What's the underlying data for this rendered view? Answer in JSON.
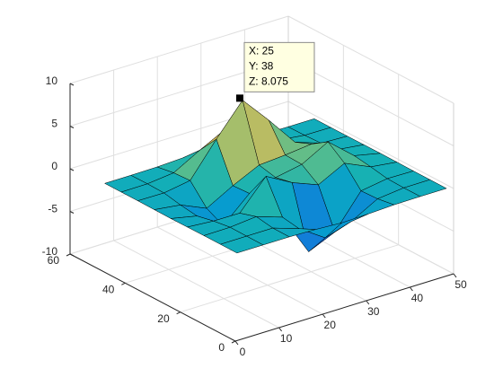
{
  "chart_data": {
    "type": "surface",
    "x": [
      1,
      7,
      13,
      19,
      25,
      31,
      37,
      43,
      49
    ],
    "y": [
      1,
      7,
      13,
      19,
      25,
      31,
      37,
      43,
      49
    ],
    "z": [
      [
        0,
        0,
        0,
        -0.08,
        -0.25,
        -0.17,
        -0.03,
        0,
        0
      ],
      [
        0,
        0.01,
        0.01,
        -1.0,
        -3.02,
        -2.05,
        -0.35,
        -0.01,
        0
      ],
      [
        0,
        0.03,
        0.33,
        -0.68,
        -5.68,
        -4.32,
        -0.44,
        0.05,
        0
      ],
      [
        -0.02,
        -0.26,
        -0.28,
        3.09,
        1.4,
        0.2,
        1.78,
        0.41,
        0.02
      ],
      [
        -0.04,
        -0.69,
        -2.77,
        0.06,
        0.98,
        1.57,
        3.27,
        0.7,
        0.03
      ],
      [
        -0.02,
        -0.42,
        -1.76,
        -0.05,
        1.42,
        1.65,
        1.99,
        0.4,
        0.02
      ],
      [
        0,
        -0.03,
        0.48,
        4.38,
        8.0,
        4.72,
        1.19,
        0.12,
        0
      ],
      [
        0,
        0.02,
        0.36,
        2.07,
        3.65,
        2.09,
        0.41,
        0.03,
        0
      ],
      [
        0,
        0,
        0.03,
        0.17,
        0.3,
        0.17,
        0.03,
        0,
        0
      ]
    ],
    "xlim": [
      0,
      50
    ],
    "ylim": [
      0,
      60
    ],
    "zlim": [
      -10,
      10
    ],
    "xticks": [
      0,
      10,
      20,
      30,
      40,
      50
    ],
    "yticks": [
      0,
      20,
      40,
      60
    ],
    "zticks": [
      -10,
      -5,
      0,
      5,
      10
    ],
    "grid": true,
    "edge_color": "#000000",
    "datatip": {
      "x": 25,
      "y": 38,
      "z": 8.075,
      "labels": [
        "X: 25",
        "Y: 38",
        "Z: 8.075"
      ]
    }
  }
}
